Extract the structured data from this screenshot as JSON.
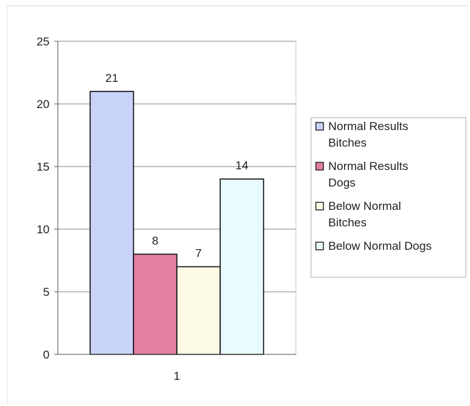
{
  "chart_data": {
    "type": "bar",
    "categories": [
      "1"
    ],
    "series": [
      {
        "name": "Normal Results Bitches",
        "legend_lines": [
          "Normal Results",
          "Bitches"
        ],
        "values": [
          21
        ],
        "color": "#c9d2f7"
      },
      {
        "name": "Normal Results Dogs",
        "legend_lines": [
          "Normal Results",
          "Dogs"
        ],
        "values": [
          8
        ],
        "color": "#e27fa3"
      },
      {
        "name": "Below Normal Bitches",
        "legend_lines": [
          "Below Normal",
          "Bitches"
        ],
        "values": [
          7
        ],
        "color": "#fefbe4"
      },
      {
        "name": "Below Normal Dogs",
        "legend_lines": [
          "Below Normal Dogs"
        ],
        "values": [
          14
        ],
        "color": "#eafbfd"
      }
    ],
    "y_ticks": [
      "0",
      "5",
      "10",
      "15",
      "20",
      "25"
    ],
    "ylim": [
      0,
      25
    ],
    "grid": true,
    "legend_position": "right",
    "data_labels": [
      "21",
      "8",
      "7",
      "14"
    ],
    "colors": {
      "plot_background": "#ffffff",
      "gridline": "#8a8a8a",
      "bar_border": "#1a1a1a"
    }
  }
}
